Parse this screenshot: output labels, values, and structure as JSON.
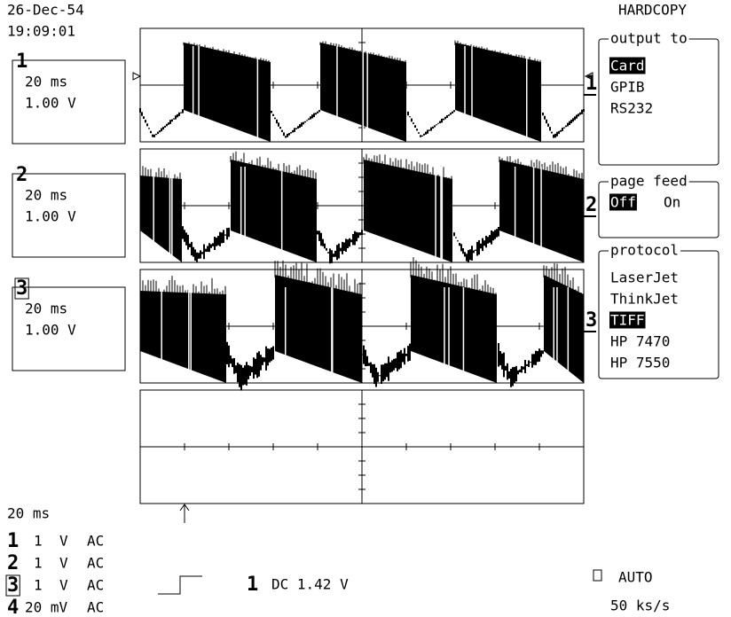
{
  "header": {
    "date": "26-Dec-54",
    "time": "19:09:01"
  },
  "channels": [
    {
      "number": "1",
      "timebase": "20 ms",
      "scale": "1.00 V"
    },
    {
      "number": "2",
      "timebase": "20 ms",
      "scale": "1.00 V"
    },
    {
      "number": "3",
      "timebase": "20 ms",
      "scale": "1.00 V"
    }
  ],
  "menu": {
    "title": "HARDCOPY",
    "groups": [
      {
        "title": "output to",
        "options": [
          "Card",
          "GPIB",
          "RS232"
        ],
        "selected": 0
      },
      {
        "title": "page feed",
        "options": [
          "Off",
          "On"
        ],
        "selected": 0
      },
      {
        "title": "protocol",
        "options": [
          "LaserJet",
          "ThinkJet",
          "TIFF",
          "HP 7470",
          "HP 7550"
        ],
        "selected": 2
      }
    ]
  },
  "trace_markers": [
    "1",
    "2",
    "3"
  ],
  "status": {
    "timebase": "20 ms",
    "channels": [
      {
        "number": "1",
        "scale": "1",
        "unit": "V",
        "coupling": "AC"
      },
      {
        "number": "2",
        "scale": "1",
        "unit": "V",
        "coupling": "AC"
      },
      {
        "number": "3",
        "scale": "1",
        "unit": "V",
        "coupling": "AC"
      },
      {
        "number": "4",
        "scale": "20 mV",
        "coupling": "AC"
      }
    ]
  },
  "trigger": {
    "source": "1",
    "level": "DC 1.42 V"
  },
  "acquisition": {
    "mode": "AUTO",
    "rate": "50 ks/s"
  }
}
